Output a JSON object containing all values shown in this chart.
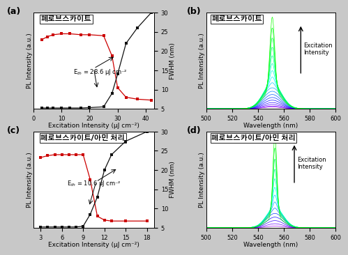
{
  "panel_a": {
    "title": "페로브스카이트",
    "xlabel": "Excitation Intensity (μJ cm⁻²)",
    "ylabel_left": "PL Intensity (a.u.)",
    "ylabel_right": "FWHM (nm)",
    "annotation": "E$_{th}$ = 28.6 μJ cm⁻²",
    "pl_x": [
      3,
      5,
      7,
      10,
      13,
      17,
      20,
      25,
      28,
      30,
      33,
      37,
      42
    ],
    "pl_y": [
      0.72,
      0.75,
      0.77,
      0.78,
      0.78,
      0.77,
      0.77,
      0.76,
      0.55,
      0.22,
      0.12,
      0.1,
      0.09
    ],
    "fwhm_x": [
      3,
      5,
      7,
      10,
      13,
      17,
      20,
      25,
      28,
      30,
      33,
      37,
      42
    ],
    "fwhm_y": [
      5.2,
      5.2,
      5.2,
      5.2,
      5.2,
      5.2,
      5.3,
      5.5,
      9.0,
      14.0,
      22.0,
      26.0,
      30.0
    ],
    "xlim": [
      0,
      43
    ],
    "ylim_left": [
      0,
      1.0
    ],
    "ylim_right": [
      5,
      30
    ],
    "yticks_right": [
      5,
      10,
      15,
      20,
      25,
      30
    ],
    "xticks": [
      0,
      10,
      20,
      30,
      40
    ]
  },
  "panel_b": {
    "title": "페로브스카이트",
    "xlabel": "Wavelength (nm)",
    "ylabel": "PL Intensity (a.u.)",
    "xlim": [
      500,
      600
    ],
    "xticks": [
      500,
      520,
      540,
      560,
      580,
      600
    ],
    "peak_wavelength": 551,
    "arrow_label": "Excitation\nIntensity",
    "n_curves": 18,
    "ase_start": 8
  },
  "panel_c": {
    "title": "페로브스카이트/아민 처리",
    "xlabel": "Excitation Intensity (μJ cm⁻²)",
    "ylabel_left": "PL Intensity (a.u.)",
    "ylabel_right": "FWHM (nm)",
    "annotation": "E$_{th}$ = 10.6 μJ cm⁻²",
    "pl_x": [
      3,
      4,
      5,
      6,
      7,
      8,
      9,
      10,
      11,
      12,
      13,
      15,
      18
    ],
    "pl_y": [
      0.73,
      0.75,
      0.76,
      0.76,
      0.76,
      0.76,
      0.76,
      0.5,
      0.12,
      0.08,
      0.07,
      0.07,
      0.07
    ],
    "fwhm_x": [
      3,
      4,
      5,
      6,
      7,
      8,
      9,
      10,
      11,
      12,
      13,
      15,
      18
    ],
    "fwhm_y": [
      5.2,
      5.2,
      5.2,
      5.2,
      5.2,
      5.2,
      5.4,
      8.5,
      13.0,
      20.0,
      24.0,
      27.5,
      30.0
    ],
    "xlim": [
      2,
      19
    ],
    "ylim_left": [
      0,
      1.0
    ],
    "ylim_right": [
      5,
      30
    ],
    "yticks_right": [
      5,
      10,
      15,
      20,
      25,
      30
    ],
    "xticks": [
      3,
      6,
      9,
      12,
      15,
      18
    ]
  },
  "panel_d": {
    "title": "페로브스카이트/아민 처리",
    "xlabel": "Wavelength (nm)",
    "ylabel": "PL Intensity (a.u.)",
    "xlim": [
      500,
      600
    ],
    "xticks": [
      500,
      520,
      540,
      560,
      580,
      600
    ],
    "peak_wavelength": 553,
    "arrow_label": "Excitation\nIntensity",
    "n_curves": 14,
    "ase_start": 4
  },
  "background_color": "#ffffff",
  "fig_background": "#c8c8c8",
  "pl_color": "#cc0000",
  "fwhm_color": "#111111",
  "label_fontsize": 6.5,
  "title_fontsize": 7.5,
  "tick_fontsize": 6,
  "annot_fontsize": 6
}
